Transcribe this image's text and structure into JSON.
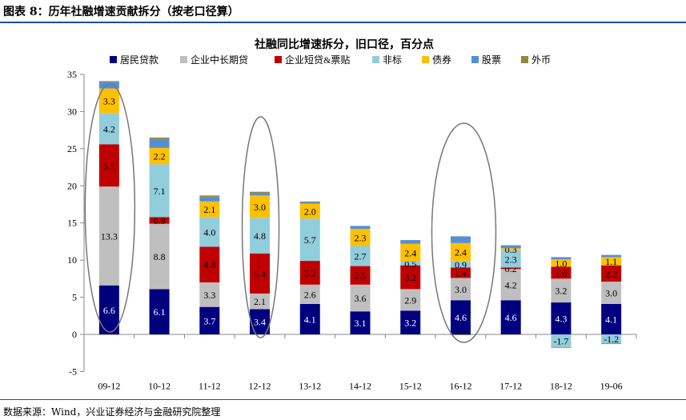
{
  "header": {
    "title": "图表 8：历年社融增速贡献拆分（按老口径算）"
  },
  "footer": {
    "source": "数据来源：Wind，兴业证券经济与金融研究院整理"
  },
  "chart_data": {
    "type": "bar",
    "stacked": true,
    "title": "社融同比增速拆分，旧口径，百分点",
    "xlabel": "",
    "ylabel": "",
    "ylim": [
      -5,
      35
    ],
    "yticks": [
      -5,
      0,
      5,
      10,
      15,
      20,
      25,
      30,
      35
    ],
    "grid": false,
    "legend": "top",
    "categories": [
      "09-12",
      "10-12",
      "11-12",
      "12-12",
      "13-12",
      "14-12",
      "15-12",
      "16-12",
      "17-12",
      "18-12",
      "19-06"
    ],
    "highlighted_categories": [
      "09-12",
      "12-12",
      "16-12"
    ],
    "series": [
      {
        "name": "居民贷款",
        "color": "#00007f",
        "values": [
          6.6,
          6.1,
          3.7,
          3.4,
          4.1,
          3.1,
          3.2,
          4.6,
          4.6,
          4.3,
          4.1
        ],
        "labeled": true
      },
      {
        "name": "企业中长期贷",
        "color": "#bfbfbf",
        "values": [
          13.3,
          8.8,
          3.3,
          2.1,
          2.6,
          3.6,
          2.9,
          3.0,
          4.2,
          3.2,
          3.0
        ],
        "labeled": true
      },
      {
        "name": "企业短贷&票贴",
        "color": "#c00000",
        "values": [
          5.7,
          0.9,
          4.8,
          5.4,
          3.2,
          2.5,
          3.2,
          1.4,
          0.2,
          1.6,
          2.2
        ],
        "labeled": true
      },
      {
        "name": "非标",
        "color": "#92cddc",
        "values": [
          4.2,
          7.1,
          4.0,
          4.8,
          5.7,
          2.7,
          0.5,
          0.9,
          2.3,
          -1.7,
          -1.2
        ],
        "labeled": true
      },
      {
        "name": "债券",
        "color": "#ffc000",
        "values": [
          3.3,
          2.2,
          2.1,
          3.0,
          2.0,
          2.3,
          2.4,
          2.4,
          0.3,
          1.0,
          1.1
        ],
        "labeled": true
      },
      {
        "name": "股票",
        "color": "#558ed5",
        "values": [
          0.9,
          1.2,
          0.6,
          0.3,
          0.2,
          0.4,
          0.5,
          0.9,
          0.4,
          0.3,
          0.3
        ],
        "labeled": false
      },
      {
        "name": "外币",
        "color": "#8a8a3c",
        "values": [
          0.1,
          0.2,
          0.2,
          0.2,
          0.1,
          0.0,
          0.0,
          -0.1,
          0.0,
          -0.1,
          -0.1
        ],
        "labeled": false
      }
    ]
  }
}
